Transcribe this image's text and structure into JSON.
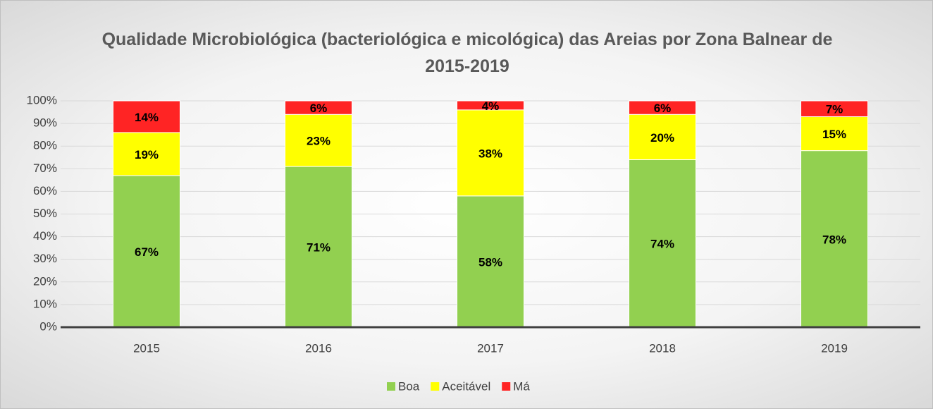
{
  "chart_data": {
    "type": "bar",
    "stacked": true,
    "title": "Qualidade Microbiológica (bacteriológica e micológica) das Areias por Zona Balnear de 2015-2019",
    "categories": [
      "2015",
      "2016",
      "2017",
      "2018",
      "2019"
    ],
    "series": [
      {
        "name": "Boa",
        "color": "#92d050",
        "values": [
          67,
          71,
          58,
          74,
          78
        ],
        "value_labels": [
          "67%",
          "71%",
          "58%",
          "74%",
          "78%"
        ]
      },
      {
        "name": "Aceitável",
        "color": "#ffff00",
        "values": [
          19,
          23,
          38,
          20,
          15
        ],
        "value_labels": [
          "19%",
          "23%",
          "38%",
          "20%",
          "15%"
        ]
      },
      {
        "name": "Má",
        "color": "#ff2424",
        "values": [
          14,
          6,
          4,
          6,
          7
        ],
        "value_labels": [
          "14%",
          "6%",
          "4%",
          "6%",
          "7%"
        ]
      }
    ],
    "ylim": [
      0,
      100
    ],
    "yticks": [
      {
        "value": 0,
        "label": "0%"
      },
      {
        "value": 10,
        "label": "10%"
      },
      {
        "value": 20,
        "label": "20%"
      },
      {
        "value": 30,
        "label": "30%"
      },
      {
        "value": 40,
        "label": "40%"
      },
      {
        "value": 50,
        "label": "50%"
      },
      {
        "value": 60,
        "label": "60%"
      },
      {
        "value": 70,
        "label": "70%"
      },
      {
        "value": 80,
        "label": "80%"
      },
      {
        "value": 90,
        "label": "90%"
      },
      {
        "value": 100,
        "label": "100%"
      }
    ],
    "grid": true,
    "legend": "bottom"
  }
}
